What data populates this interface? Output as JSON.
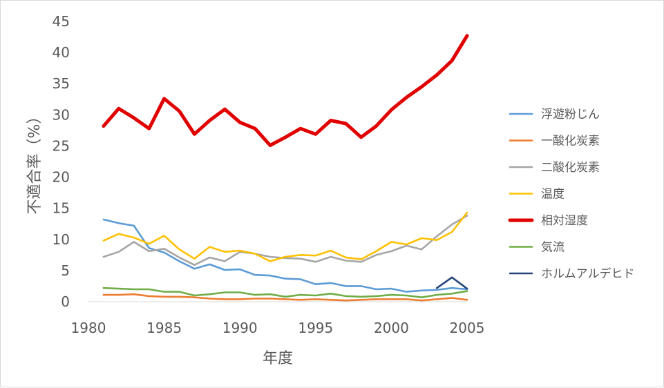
{
  "chart_data": {
    "type": "line",
    "title": "",
    "xlabel": "年度",
    "ylabel": "不適合率（%）",
    "xlim": [
      1980,
      2005
    ],
    "ylim": [
      0,
      45
    ],
    "xticks": [
      1980,
      1985,
      1990,
      1995,
      2000,
      2005
    ],
    "yticks": [
      0,
      5,
      10,
      15,
      20,
      25,
      30,
      35,
      40,
      45
    ],
    "grid": false,
    "legend_position": "right",
    "series": [
      {
        "name": "浮遊粉じん",
        "color": "#5b9bd5",
        "x": [
          1981,
          1982,
          1983,
          1984,
          1985,
          1986,
          1987,
          1988,
          1989,
          1990,
          1991,
          1992,
          1993,
          1994,
          1995,
          1996,
          1997,
          1998,
          1999,
          2000,
          2001,
          2002,
          2003,
          2004,
          2005
        ],
        "values": [
          13.2,
          12.6,
          12.2,
          8.6,
          7.9,
          6.5,
          5.3,
          6.0,
          5.1,
          5.2,
          4.3,
          4.2,
          3.7,
          3.6,
          2.8,
          3.0,
          2.5,
          2.5,
          2.0,
          2.1,
          1.6,
          1.8,
          1.9,
          2.2,
          2.0
        ]
      },
      {
        "name": "一酸化炭素",
        "color": "#ed7d31",
        "x": [
          1981,
          1982,
          1983,
          1984,
          1985,
          1986,
          1987,
          1988,
          1989,
          1990,
          1991,
          1992,
          1993,
          1994,
          1995,
          1996,
          1997,
          1998,
          1999,
          2000,
          2001,
          2002,
          2003,
          2004,
          2005
        ],
        "values": [
          1.1,
          1.1,
          1.2,
          0.9,
          0.8,
          0.8,
          0.7,
          0.5,
          0.4,
          0.4,
          0.5,
          0.5,
          0.4,
          0.3,
          0.4,
          0.3,
          0.2,
          0.3,
          0.4,
          0.4,
          0.4,
          0.2,
          0.4,
          0.6,
          0.3
        ]
      },
      {
        "name": "二酸化炭素",
        "color": "#a5a5a5",
        "x": [
          1981,
          1982,
          1983,
          1984,
          1985,
          1986,
          1987,
          1988,
          1989,
          1990,
          1991,
          1992,
          1993,
          1994,
          1995,
          1996,
          1997,
          1998,
          1999,
          2000,
          2001,
          2002,
          2003,
          2004,
          2005
        ],
        "values": [
          7.2,
          8.0,
          9.6,
          8.1,
          8.5,
          7.1,
          5.9,
          7.1,
          6.5,
          8.0,
          7.7,
          7.2,
          7.0,
          6.9,
          6.4,
          7.2,
          6.6,
          6.4,
          7.5,
          8.1,
          9.0,
          8.4,
          10.5,
          12.4,
          13.8
        ]
      },
      {
        "name": "温度",
        "color": "#ffc000",
        "x": [
          1981,
          1982,
          1983,
          1984,
          1985,
          1986,
          1987,
          1988,
          1989,
          1990,
          1991,
          1992,
          1993,
          1994,
          1995,
          1996,
          1997,
          1998,
          1999,
          2000,
          2001,
          2002,
          2003,
          2004,
          2005
        ],
        "values": [
          9.8,
          10.9,
          10.3,
          9.3,
          10.6,
          8.4,
          6.9,
          8.8,
          8.0,
          8.2,
          7.7,
          6.5,
          7.2,
          7.5,
          7.4,
          8.2,
          7.1,
          6.8,
          8.1,
          9.6,
          9.2,
          10.2,
          9.9,
          11.2,
          14.3
        ]
      },
      {
        "name": "相対湿度",
        "color": "#e00000",
        "x": [
          1981,
          1982,
          1983,
          1984,
          1985,
          1986,
          1987,
          1988,
          1989,
          1990,
          1991,
          1992,
          1993,
          1994,
          1995,
          1996,
          1997,
          1998,
          1999,
          2000,
          2001,
          2002,
          2003,
          2004,
          2005
        ],
        "values": [
          28.2,
          31.0,
          29.5,
          27.8,
          32.6,
          30.6,
          26.9,
          29.1,
          30.9,
          28.8,
          27.8,
          25.1,
          26.4,
          27.8,
          26.9,
          29.1,
          28.6,
          26.4,
          28.2,
          30.8,
          32.8,
          34.5,
          36.4,
          38.7,
          42.7
        ]
      },
      {
        "name": "気流",
        "color": "#70ad47",
        "x": [
          1981,
          1982,
          1983,
          1984,
          1985,
          1986,
          1987,
          1988,
          1989,
          1990,
          1991,
          1992,
          1993,
          1994,
          1995,
          1996,
          1997,
          1998,
          1999,
          2000,
          2001,
          2002,
          2003,
          2004,
          2005
        ],
        "values": [
          2.2,
          2.1,
          2.0,
          2.0,
          1.6,
          1.6,
          1.0,
          1.2,
          1.5,
          1.5,
          1.1,
          1.2,
          0.8,
          1.1,
          1.0,
          1.3,
          0.9,
          0.8,
          0.9,
          1.1,
          1.0,
          0.7,
          1.1,
          1.3,
          1.7
        ]
      },
      {
        "name": "ホルムアルデヒド",
        "color": "#264478",
        "x": [
          2003,
          2004,
          2005
        ],
        "values": [
          2.2,
          3.9,
          2.1
        ]
      }
    ]
  }
}
